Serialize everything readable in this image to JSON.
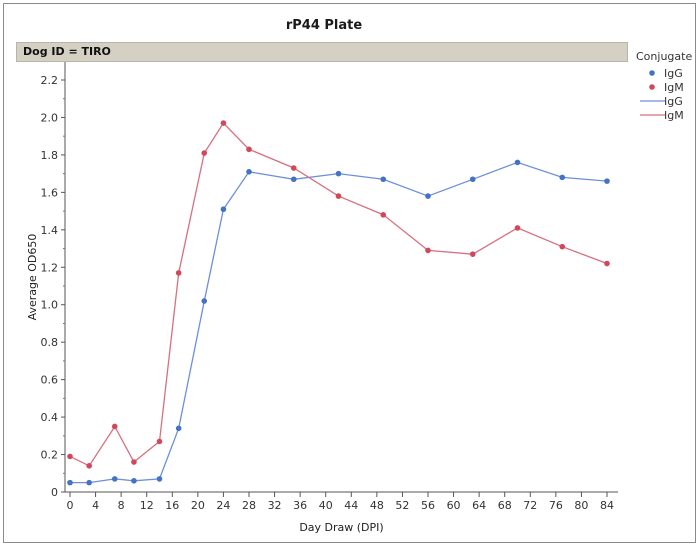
{
  "title": "rP44 Plate",
  "group_label": "Dog ID = TIRO",
  "legend": {
    "title": "Conjugate",
    "entries": [
      {
        "label": "IgG",
        "kind": "marker",
        "color": "#4472c4"
      },
      {
        "label": "IgM",
        "kind": "marker",
        "color": "#d0485a"
      },
      {
        "label": "IgG",
        "kind": "line",
        "color": "#6d8fdc"
      },
      {
        "label": "IgM",
        "kind": "line",
        "color": "#d7707e"
      }
    ]
  },
  "chart_data": {
    "type": "line",
    "title": "rP44 Plate",
    "xlabel": "Day Draw (DPI)",
    "ylabel": "Average OD650",
    "xlim": [
      0,
      88
    ],
    "ylim": [
      0,
      2.3
    ],
    "xticks": [
      0,
      4,
      8,
      12,
      16,
      20,
      24,
      28,
      32,
      36,
      40,
      44,
      48,
      52,
      56,
      60,
      64,
      68,
      72,
      76,
      80,
      84
    ],
    "yticks": [
      0,
      0.2,
      0.4,
      0.6,
      0.8,
      1.0,
      1.2,
      1.4,
      1.6,
      1.8,
      2.0,
      2.2
    ],
    "ytick_labels": [
      "0",
      "0.2",
      "0.4",
      "0.6",
      "0.8",
      "1.0",
      "1.2",
      "1.4",
      "1.6",
      "1.8",
      "2.0",
      "2.2"
    ],
    "grid": false,
    "legend_position": "right",
    "series": [
      {
        "name": "IgG",
        "color": "#4472c4",
        "line_color": "#6d8fdc",
        "x": [
          0,
          3,
          7,
          10,
          14,
          17,
          21,
          24,
          28,
          35,
          42,
          49,
          56,
          63,
          70,
          77,
          84
        ],
        "y": [
          0.05,
          0.05,
          0.07,
          0.06,
          0.07,
          0.34,
          1.02,
          1.51,
          1.71,
          1.67,
          1.7,
          1.67,
          1.58,
          1.67,
          1.76,
          1.68,
          1.66
        ]
      },
      {
        "name": "IgM",
        "color": "#d0485a",
        "line_color": "#d7707e",
        "x": [
          0,
          3,
          7,
          10,
          14,
          17,
          21,
          24,
          28,
          35,
          42,
          49,
          56,
          63,
          70,
          77,
          84
        ],
        "y": [
          0.19,
          0.14,
          0.35,
          0.16,
          0.27,
          1.17,
          1.81,
          1.97,
          1.83,
          1.73,
          1.58,
          1.48,
          1.29,
          1.27,
          1.41,
          1.31,
          1.22
        ]
      }
    ]
  }
}
